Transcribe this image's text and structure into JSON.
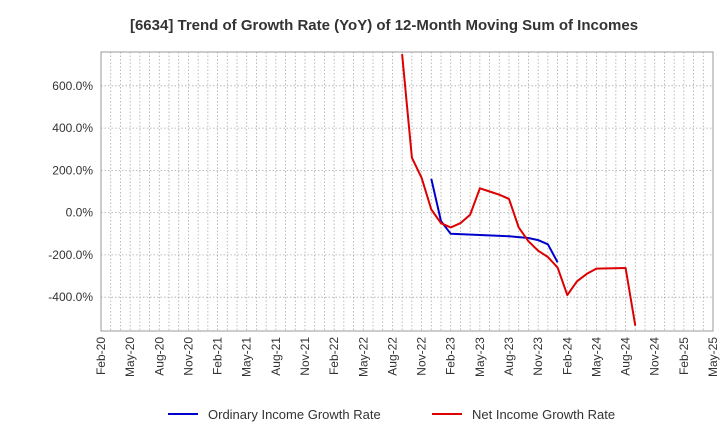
{
  "chart_data": {
    "type": "line",
    "title": "[6634]  Trend of Growth Rate (YoY) of 12-Month Moving Sum of Incomes",
    "xlabel": "",
    "ylabel": "",
    "x_ticks": [
      "Feb-20",
      "May-20",
      "Aug-20",
      "Nov-20",
      "Feb-21",
      "May-21",
      "Aug-21",
      "Nov-21",
      "Feb-22",
      "May-22",
      "Aug-22",
      "Nov-22",
      "Feb-23",
      "May-23",
      "Aug-23",
      "Nov-23",
      "Feb-24",
      "May-24",
      "Aug-24",
      "Nov-24",
      "Feb-25",
      "May-25"
    ],
    "y_ticks": [
      600,
      400,
      200,
      0,
      -200,
      -400
    ],
    "y_tick_labels": [
      "600.0%",
      "400.0%",
      "200.0%",
      "0.0%",
      "-200.0%",
      "-400.0%"
    ],
    "ylim": [
      -560,
      760
    ],
    "grid": true,
    "legend_position": "bottom",
    "series": [
      {
        "name": "Ordinary Income Growth Rate",
        "color": "#0000cc",
        "points": [
          {
            "x": "Dec-22",
            "y": 160
          },
          {
            "x": "Jan-23",
            "y": -40
          },
          {
            "x": "Feb-23",
            "y": -100
          },
          {
            "x": "Aug-23",
            "y": -112
          },
          {
            "x": "Oct-23",
            "y": -120
          },
          {
            "x": "Nov-23",
            "y": -130
          },
          {
            "x": "Dec-23",
            "y": -150
          },
          {
            "x": "Jan-24",
            "y": -235
          }
        ]
      },
      {
        "name": "Net Income Growth Rate",
        "color": "#dd0000",
        "points": [
          {
            "x": "Sep-22",
            "y": 750
          },
          {
            "x": "Oct-22",
            "y": 260
          },
          {
            "x": "Nov-22",
            "y": 165
          },
          {
            "x": "Dec-22",
            "y": 15
          },
          {
            "x": "Jan-23",
            "y": -50
          },
          {
            "x": "Feb-23",
            "y": -70
          },
          {
            "x": "Mar-23",
            "y": -50
          },
          {
            "x": "Apr-23",
            "y": -10
          },
          {
            "x": "May-23",
            "y": 115
          },
          {
            "x": "Jun-23",
            "y": 100
          },
          {
            "x": "Jul-23",
            "y": 85
          },
          {
            "x": "Aug-23",
            "y": 65
          },
          {
            "x": "Sep-23",
            "y": -70
          },
          {
            "x": "Oct-23",
            "y": -135
          },
          {
            "x": "Nov-23",
            "y": -180
          },
          {
            "x": "Dec-23",
            "y": -210
          },
          {
            "x": "Jan-24",
            "y": -260
          },
          {
            "x": "Feb-24",
            "y": -390
          },
          {
            "x": "Mar-24",
            "y": -325
          },
          {
            "x": "Apr-24",
            "y": -290
          },
          {
            "x": "May-24",
            "y": -265
          },
          {
            "x": "Aug-24",
            "y": -262
          },
          {
            "x": "Sep-24",
            "y": -535
          }
        ]
      }
    ]
  }
}
